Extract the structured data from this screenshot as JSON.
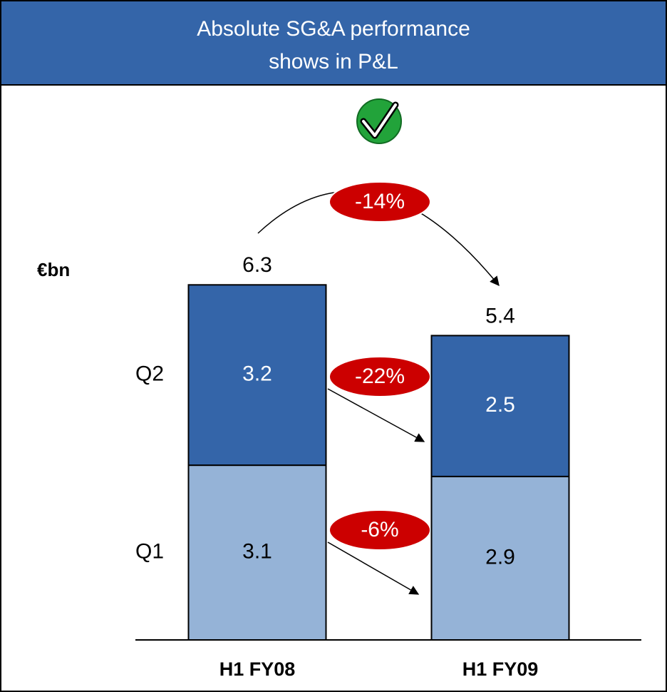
{
  "chart_data": {
    "type": "stacked_bar",
    "title_lines": [
      "Absolute SG&A performance",
      "shows in P&L"
    ],
    "unit_label": "€bn",
    "categories": [
      "H1 FY08",
      "H1 FY09"
    ],
    "series": [
      {
        "name": "Q1",
        "color": "#95b3d7",
        "values": [
          3.1,
          2.9
        ]
      },
      {
        "name": "Q2",
        "color": "#3465a9",
        "values": [
          3.2,
          2.5
        ]
      }
    ],
    "totals": [
      6.3,
      5.4
    ],
    "annotations": {
      "total_change": "-14%",
      "series_changes": [
        "-6%",
        "-22%"
      ]
    }
  }
}
